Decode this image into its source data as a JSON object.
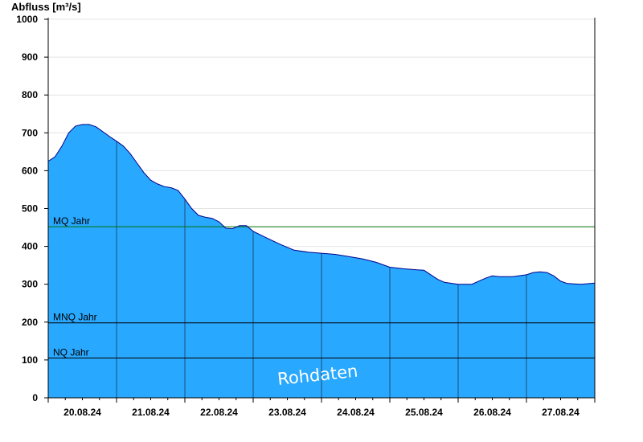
{
  "chart_data": {
    "type": "area",
    "title": "",
    "ylabel": "Abfluss [m³/s]",
    "xlabel": "",
    "ylim": [
      0,
      1000
    ],
    "yticks": [
      0,
      100,
      200,
      300,
      400,
      500,
      600,
      700,
      800,
      900,
      1000
    ],
    "xlim": [
      0,
      8
    ],
    "day_labels": [
      "20.08.24",
      "21.08.24",
      "22.08.24",
      "23.08.24",
      "24.08.24",
      "25.08.24",
      "26.08.24",
      "27.08.24"
    ],
    "series": [
      {
        "values": [
          [
            0.0,
            625
          ],
          [
            0.1,
            637
          ],
          [
            0.2,
            665
          ],
          [
            0.3,
            700
          ],
          [
            0.4,
            718
          ],
          [
            0.5,
            722
          ],
          [
            0.6,
            722
          ],
          [
            0.7,
            716
          ],
          [
            0.8,
            703
          ],
          [
            0.9,
            690
          ],
          [
            1.0,
            678
          ],
          [
            1.1,
            665
          ],
          [
            1.2,
            645
          ],
          [
            1.3,
            620
          ],
          [
            1.4,
            595
          ],
          [
            1.5,
            575
          ],
          [
            1.6,
            565
          ],
          [
            1.7,
            558
          ],
          [
            1.8,
            555
          ],
          [
            1.9,
            548
          ],
          [
            2.0,
            525
          ],
          [
            2.1,
            500
          ],
          [
            2.2,
            482
          ],
          [
            2.3,
            477
          ],
          [
            2.4,
            474
          ],
          [
            2.5,
            465
          ],
          [
            2.6,
            448
          ],
          [
            2.7,
            447
          ],
          [
            2.8,
            455
          ],
          [
            2.9,
            455
          ],
          [
            3.0,
            440
          ],
          [
            3.2,
            422
          ],
          [
            3.4,
            405
          ],
          [
            3.6,
            390
          ],
          [
            3.8,
            385
          ],
          [
            4.0,
            382
          ],
          [
            4.2,
            379
          ],
          [
            4.4,
            373
          ],
          [
            4.6,
            367
          ],
          [
            4.8,
            358
          ],
          [
            5.0,
            345
          ],
          [
            5.2,
            341
          ],
          [
            5.4,
            338
          ],
          [
            5.5,
            337
          ],
          [
            5.6,
            325
          ],
          [
            5.7,
            313
          ],
          [
            5.8,
            305
          ],
          [
            6.0,
            300
          ],
          [
            6.2,
            300
          ],
          [
            6.3,
            308
          ],
          [
            6.4,
            316
          ],
          [
            6.5,
            322
          ],
          [
            6.6,
            320
          ],
          [
            6.8,
            320
          ],
          [
            7.0,
            325
          ],
          [
            7.1,
            331
          ],
          [
            7.2,
            333
          ],
          [
            7.3,
            331
          ],
          [
            7.4,
            322
          ],
          [
            7.5,
            308
          ],
          [
            7.6,
            302
          ],
          [
            7.8,
            300
          ],
          [
            8.0,
            303
          ]
        ],
        "color": "#28a8ff",
        "edge_color": "#00008b"
      }
    ],
    "reference_lines": [
      {
        "label": "MQ Jahr",
        "value": 452,
        "color": "#007000"
      },
      {
        "label": "MNQ Jahr",
        "value": 198,
        "color": "#000000"
      },
      {
        "label": "NQ Jahr",
        "value": 105,
        "color": "#000000"
      }
    ],
    "watermark": "Rohdaten",
    "gridlines": true,
    "grid_color": "#e4e4e4",
    "day_separator_color": "#1a3a5a"
  }
}
